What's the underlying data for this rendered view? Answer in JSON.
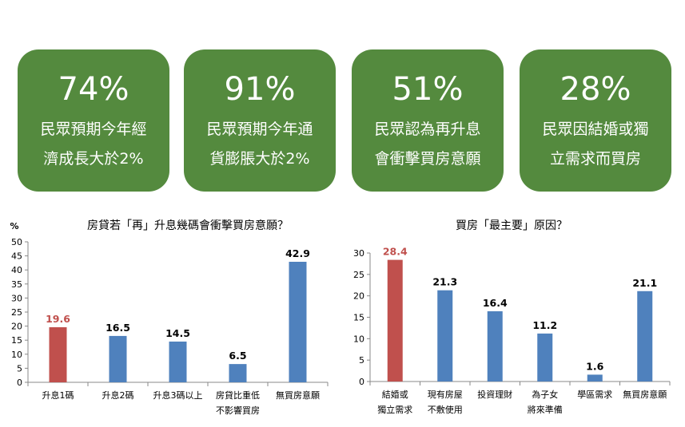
{
  "cards": [
    {
      "pct": "74%",
      "line1": "民眾預期今年經",
      "line2": "濟成長大於2%"
    },
    {
      "pct": "91%",
      "line1": "民眾預期今年通",
      "line2": "貨膨脹大於2%"
    },
    {
      "pct": "51%",
      "line1": "民眾認為再升息",
      "line2": "會衝擊買房意願"
    },
    {
      "pct": "28%",
      "line1": "民眾因結婚或獨",
      "line2": "立需求而買房"
    }
  ],
  "colors": {
    "card": "#548a3e",
    "bar": "#4f81bd",
    "highlight": "#c0504d"
  },
  "chart_data": [
    {
      "type": "bar",
      "title": "房貸若「再」升息幾碼會衝擊買房意願？",
      "ylabel": "%",
      "ylim": [
        0,
        50
      ],
      "yticks": [
        0,
        5,
        10,
        15,
        20,
        25,
        30,
        35,
        40,
        45,
        50
      ],
      "categories": [
        [
          "升息1碼"
        ],
        [
          "升息2碼"
        ],
        [
          "升息3碼以上"
        ],
        [
          "房貸比重低",
          "不影響買房"
        ],
        [
          "無買房意願"
        ]
      ],
      "values": [
        19.6,
        16.5,
        14.5,
        6.5,
        42.9
      ],
      "labels": [
        "19.6",
        "16.5",
        "14.5",
        "6.5",
        "42.9"
      ],
      "highlight_index": 0
    },
    {
      "type": "bar",
      "title": "買房「最主要」原因？",
      "ylim": [
        0,
        30
      ],
      "yticks": [
        0,
        5,
        10,
        15,
        20,
        25,
        30
      ],
      "categories": [
        [
          "結婚或",
          "獨立需求"
        ],
        [
          "現有房屋",
          "不敷使用"
        ],
        [
          "投資理財"
        ],
        [
          "為子女",
          "將來準備"
        ],
        [
          "學區需求"
        ],
        [
          "無買房意願"
        ]
      ],
      "values": [
        28.4,
        21.3,
        16.4,
        11.2,
        1.6,
        21.1
      ],
      "labels": [
        "28.4",
        "21.3",
        "16.4",
        "11.2",
        "1.6",
        "21.1"
      ],
      "highlight_index": 0
    }
  ]
}
